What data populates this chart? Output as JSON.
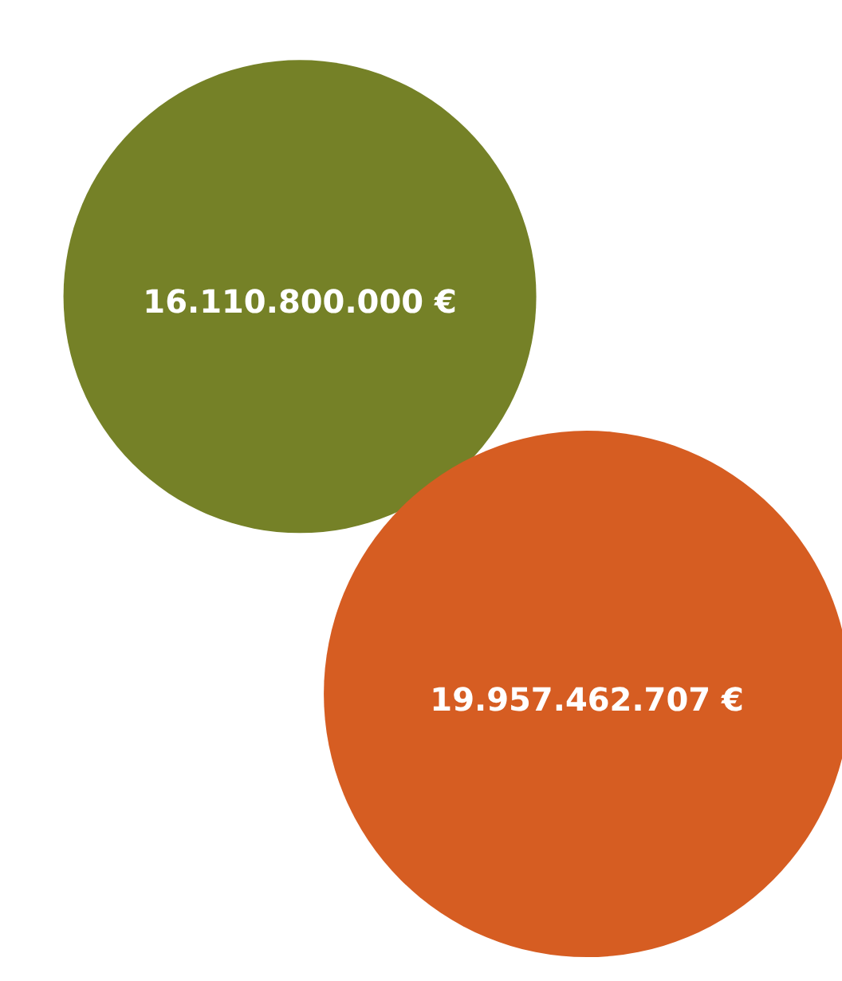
{
  "chart_data": {
    "type": "other",
    "categories": [
      null,
      null
    ],
    "values": [
      16110800000,
      19957462707
    ],
    "colors": [
      "#758127",
      "#d65d22"
    ],
    "value_labels": [
      "16.110.800.000 €",
      "19.957.462.707 €"
    ]
  }
}
